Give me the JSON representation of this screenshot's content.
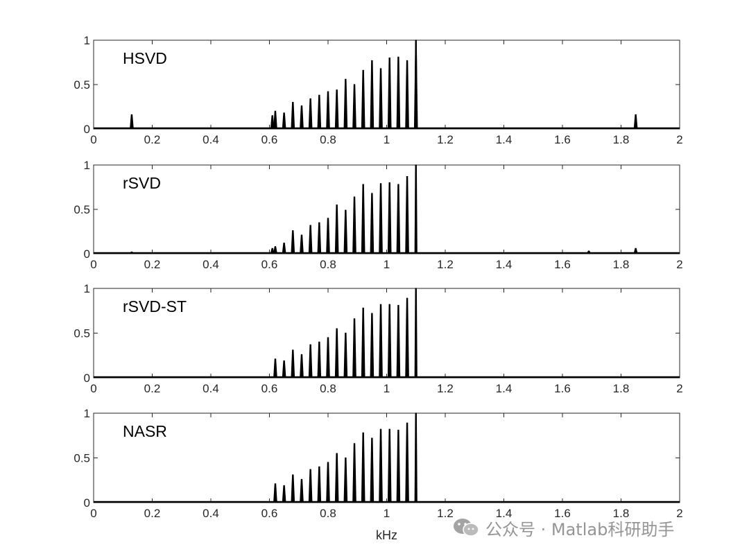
{
  "chart_data": [
    {
      "type": "line",
      "title": "HSVD",
      "xlim": [
        0,
        2
      ],
      "ylim": [
        0,
        1
      ],
      "xticks": [
        0,
        0.2,
        0.4,
        0.6,
        0.8,
        1,
        1.2,
        1.4,
        1.6,
        1.8,
        2
      ],
      "yticks": [
        0,
        0.5,
        1
      ],
      "peaks": [
        [
          0.13,
          0.16
        ],
        [
          0.61,
          0.15
        ],
        [
          0.62,
          0.2
        ],
        [
          0.65,
          0.18
        ],
        [
          0.68,
          0.3
        ],
        [
          0.71,
          0.26
        ],
        [
          0.74,
          0.34
        ],
        [
          0.77,
          0.38
        ],
        [
          0.8,
          0.42
        ],
        [
          0.83,
          0.44
        ],
        [
          0.86,
          0.56
        ],
        [
          0.89,
          0.5
        ],
        [
          0.92,
          0.66
        ],
        [
          0.95,
          0.77
        ],
        [
          0.98,
          0.68
        ],
        [
          1.01,
          0.8
        ],
        [
          1.04,
          0.81
        ],
        [
          1.07,
          0.77
        ],
        [
          1.1,
          0.88
        ],
        [
          1.1,
          1.0
        ],
        [
          1.85,
          0.16
        ]
      ]
    },
    {
      "type": "line",
      "title": "rSVD",
      "xlim": [
        0,
        2
      ],
      "ylim": [
        0,
        1
      ],
      "xticks": [
        0,
        0.2,
        0.4,
        0.6,
        0.8,
        1,
        1.2,
        1.4,
        1.6,
        1.8,
        2
      ],
      "yticks": [
        0,
        0.5,
        1
      ],
      "peaks": [
        [
          0.13,
          0.02
        ],
        [
          0.61,
          0.06
        ],
        [
          0.62,
          0.08
        ],
        [
          0.65,
          0.12
        ],
        [
          0.68,
          0.26
        ],
        [
          0.71,
          0.21
        ],
        [
          0.74,
          0.32
        ],
        [
          0.77,
          0.35
        ],
        [
          0.8,
          0.4
        ],
        [
          0.83,
          0.55
        ],
        [
          0.86,
          0.49
        ],
        [
          0.89,
          0.64
        ],
        [
          0.92,
          0.78
        ],
        [
          0.95,
          0.68
        ],
        [
          0.98,
          0.79
        ],
        [
          1.01,
          0.8
        ],
        [
          1.04,
          0.78
        ],
        [
          1.07,
          0.87
        ],
        [
          1.1,
          1.0
        ],
        [
          1.69,
          0.03
        ],
        [
          1.85,
          0.06
        ]
      ]
    },
    {
      "type": "line",
      "title": "rSVD-ST",
      "xlim": [
        0,
        2
      ],
      "ylim": [
        0,
        1
      ],
      "xticks": [
        0,
        0.2,
        0.4,
        0.6,
        0.8,
        1,
        1.2,
        1.4,
        1.6,
        1.8,
        2
      ],
      "yticks": [
        0,
        0.5,
        1
      ],
      "peaks": [
        [
          0.62,
          0.21
        ],
        [
          0.65,
          0.19
        ],
        [
          0.68,
          0.31
        ],
        [
          0.71,
          0.26
        ],
        [
          0.74,
          0.37
        ],
        [
          0.77,
          0.4
        ],
        [
          0.8,
          0.45
        ],
        [
          0.83,
          0.55
        ],
        [
          0.86,
          0.5
        ],
        [
          0.89,
          0.66
        ],
        [
          0.92,
          0.78
        ],
        [
          0.95,
          0.72
        ],
        [
          0.98,
          0.82
        ],
        [
          1.01,
          0.82
        ],
        [
          1.04,
          0.81
        ],
        [
          1.07,
          0.89
        ],
        [
          1.1,
          1.0
        ]
      ]
    },
    {
      "type": "line",
      "title": "NASR",
      "xlim": [
        0,
        2
      ],
      "ylim": [
        0,
        1
      ],
      "xticks": [
        0,
        0.2,
        0.4,
        0.6,
        0.8,
        1,
        1.2,
        1.4,
        1.6,
        1.8,
        2
      ],
      "yticks": [
        0,
        0.5,
        1
      ],
      "xlabel": "kHz",
      "peaks": [
        [
          0.62,
          0.21
        ],
        [
          0.65,
          0.19
        ],
        [
          0.68,
          0.31
        ],
        [
          0.71,
          0.26
        ],
        [
          0.74,
          0.37
        ],
        [
          0.77,
          0.4
        ],
        [
          0.8,
          0.45
        ],
        [
          0.83,
          0.55
        ],
        [
          0.86,
          0.5
        ],
        [
          0.89,
          0.66
        ],
        [
          0.92,
          0.78
        ],
        [
          0.95,
          0.72
        ],
        [
          0.98,
          0.82
        ],
        [
          1.01,
          0.82
        ],
        [
          1.04,
          0.81
        ],
        [
          1.07,
          0.89
        ],
        [
          1.1,
          1.0
        ]
      ]
    }
  ],
  "watermark": {
    "text": "公众号 · Matlab科研助手",
    "icon": "wechat-icon"
  }
}
